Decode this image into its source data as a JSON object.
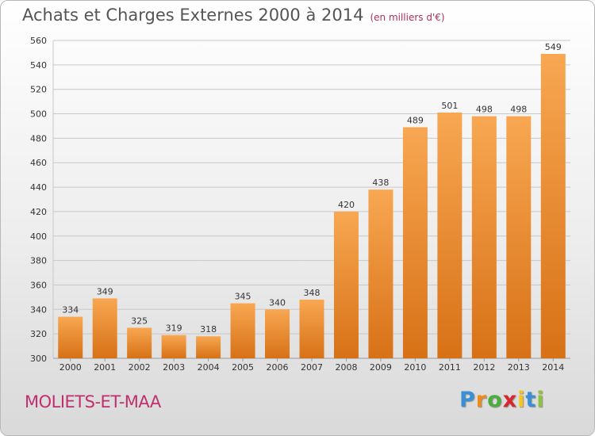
{
  "title": "Achats et Charges Externes 2000 à 2014",
  "subtitle": "(en milliers d'€)",
  "commune": "MOLIETS-ET-MAA",
  "brand": {
    "letters": [
      "P",
      "r",
      "o",
      "x",
      "i",
      "t",
      "i"
    ],
    "colors": [
      "#3b8fd6",
      "#f08a1c",
      "#4bae3a",
      "#d9262e",
      "#f6c51b",
      "#3b8fd6",
      "#8bc33f"
    ]
  },
  "colors": {
    "bar_light": "#f8a752",
    "bar_dark": "#d77116",
    "grid": "#c8c8c8",
    "text": "#333333"
  },
  "chart_data": {
    "type": "bar",
    "title": "Achats et Charges Externes 2000 à 2014",
    "subtitle": "(en milliers d'€)",
    "categories": [
      "2000",
      "2001",
      "2002",
      "2003",
      "2004",
      "2005",
      "2006",
      "2007",
      "2008",
      "2009",
      "2010",
      "2011",
      "2012",
      "2013",
      "2014"
    ],
    "values": [
      334,
      349,
      325,
      319,
      318,
      345,
      340,
      348,
      420,
      438,
      489,
      501,
      498,
      498,
      549
    ],
    "ylim": [
      300,
      560
    ],
    "yticks": [
      300,
      320,
      340,
      360,
      380,
      400,
      420,
      440,
      460,
      480,
      500,
      520,
      540,
      560
    ],
    "grid": true,
    "data_labels": true
  }
}
